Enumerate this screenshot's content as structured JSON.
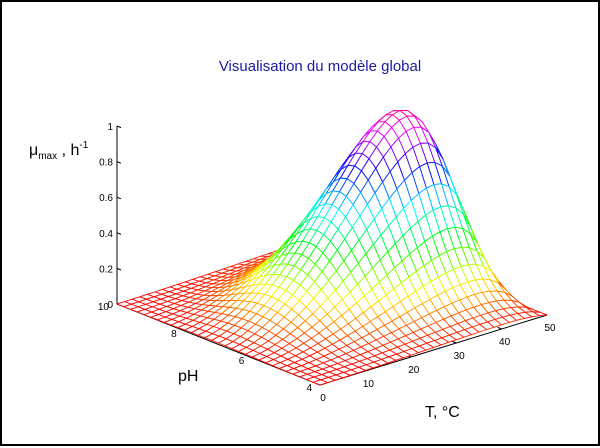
{
  "chart_data": {
    "type": "surface",
    "title": "Visualisation du modèle global",
    "zlabel": {
      "main": "μ",
      "sub": "max",
      "mid": " , h",
      "sup": "-1"
    },
    "xlabel": "T, °C",
    "ylabel": "pH",
    "xlim": [
      0,
      50
    ],
    "ylim": [
      4,
      10
    ],
    "zlim": [
      0,
      1
    ],
    "x_ticks": [
      0,
      10,
      20,
      30,
      40,
      50
    ],
    "y_ticks": [
      4,
      6,
      8,
      10
    ],
    "z_ticks": [
      0,
      0.2,
      0.4,
      0.6,
      0.8,
      1
    ],
    "z_tick_labels": [
      "0",
      "0.2",
      "0.4",
      "0.6",
      "0.8",
      "1"
    ],
    "peak": {
      "T": 40,
      "pH": 7,
      "mu_max": 1
    },
    "x_grid_count": 31,
    "y_grid_count": 31,
    "colormap": "hsv",
    "grid": "off"
  }
}
